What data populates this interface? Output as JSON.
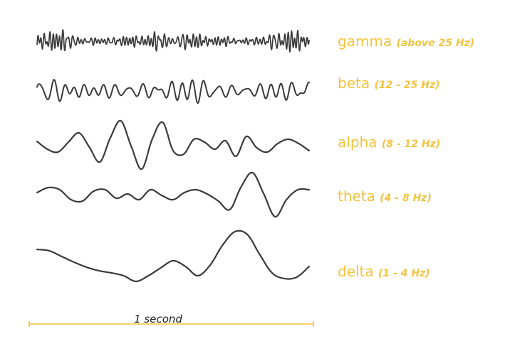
{
  "colors": {
    "label": "#F4C33E",
    "wave": "#3a3a3a",
    "scale": "#F2C23A",
    "scale_text": "#222222"
  },
  "bands": [
    {
      "name": "gamma",
      "range": "(above 25 Hz)"
    },
    {
      "name": "beta",
      "range": "(12 - 25 Hz)"
    },
    {
      "name": "alpha",
      "range": "(8 - 12 Hz)"
    },
    {
      "name": "theta",
      "range": "(4 - 8 Hz)"
    },
    {
      "name": "delta",
      "range": "(1 - 4 Hz)"
    }
  ],
  "scale_bar": {
    "label": "1 second"
  }
}
